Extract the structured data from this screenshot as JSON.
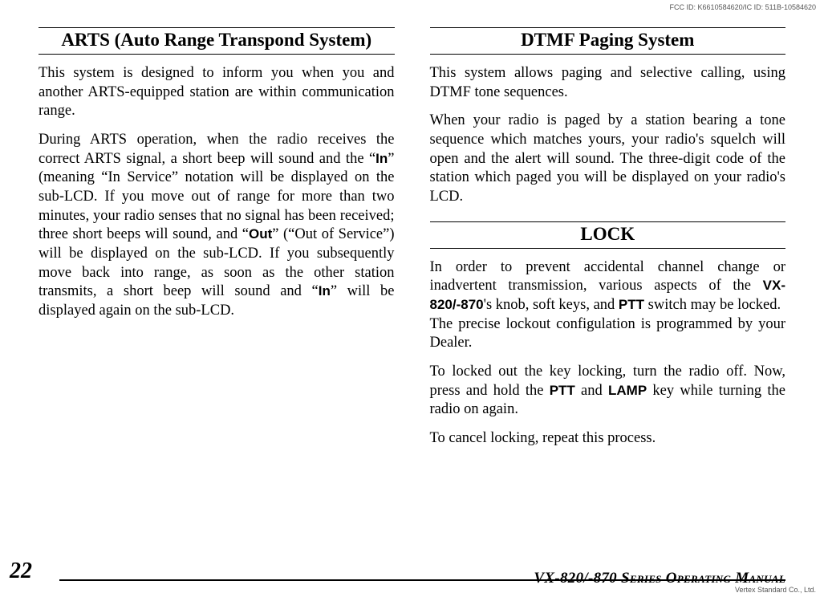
{
  "meta": {
    "fcc": "FCC ID: K6610584620/IC ID: 511B-10584620",
    "vertex": "Vertex Standard Co., Ltd."
  },
  "left": {
    "title_main": "ARTS",
    "title_sub": " (Auto Range Transpond System)",
    "p1": "This system is designed to inform you when you and another ARTS-equipped station are within communication range.",
    "p2_a": "During ARTS operation, when the radio receives the correct ARTS signal, a short beep will sound and the “",
    "p2_in1": "In",
    "p2_b": "” (meaning “In Service” notation will be displayed on the sub-LCD. If you move out of range for more than two minutes, your radio senses that no signal has been received; three short beeps will sound, and “",
    "p2_out": "Out",
    "p2_c": "”  (“Out of Service”) will be displayed on the sub-LCD. If you subsequently move back into range, as soon as the other station transmits, a short beep will sound and “",
    "p2_in2": "In",
    "p2_d": "” will be displayed again on the sub-LCD."
  },
  "right": {
    "dtmf_title_main": "DTMF",
    "dtmf_title_sub": " Paging System",
    "dtmf_p1": "This system allows paging and selective calling, using DTMF tone sequences.",
    "dtmf_p2": "When your radio is paged by a station bearing a tone sequence which matches yours, your radio's squelch will open and the alert will sound. The three-digit code of the station which paged you will be displayed on your radio's LCD.",
    "lock_title": "LOCK",
    "lock_p1_a": "In order to prevent accidental channel change or inadvertent transmission, various aspects of the ",
    "lock_model": "VX-820/-870",
    "lock_p1_b": "'s knob, soft keys, and ",
    "lock_ptt1": "PTT",
    "lock_p1_c": " switch may be locked.",
    "lock_p1_d": "The precise lockout configulation is programmed by your Dealer.",
    "lock_p2_a": "To locked out the key locking, turn the radio off. Now, press and hold the ",
    "lock_ptt2": "PTT",
    "lock_p2_b": " and ",
    "lock_lamp": "LAMP",
    "lock_p2_c": " key while turning the radio on again.",
    "lock_p3": "To cancel locking, repeat this process."
  },
  "footer": {
    "page": "22",
    "manual": "VX-820/-870 Series Operating Manual"
  }
}
